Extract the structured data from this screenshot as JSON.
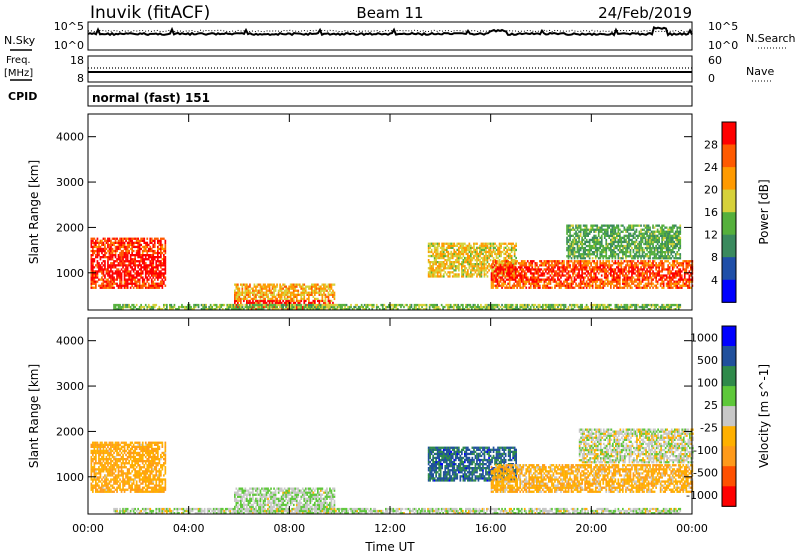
{
  "header": {
    "station": "Inuvik  (fitACF)",
    "beam": "Beam 11",
    "date": "24/Feb/2019"
  },
  "noise_panel": {
    "left_label": "N.Sky",
    "right_label": "N.Search",
    "left_ticks": [
      "10^5",
      "10^0"
    ],
    "right_ticks": [
      "10^5",
      "10^0"
    ]
  },
  "freq_panel": {
    "left_label_line1": "Freq.",
    "left_label_line2": "[MHz]",
    "right_label": "Nave",
    "left_ticks": [
      "18",
      "8"
    ],
    "right_ticks": [
      "60",
      "0"
    ]
  },
  "cpid_panel": {
    "label": "CPID",
    "text": "normal (fast) 151"
  },
  "colors": {
    "power_scale": [
      "#0000ff",
      "#1f4fa8",
      "#3a8a5e",
      "#55b03c",
      "#d6d13a",
      "#ff9a00",
      "#ff5a00",
      "#ff0000"
    ],
    "velocity_scale": [
      "#ff0000",
      "#ff5000",
      "#ff9a1a",
      "#ffb000",
      "#c8c8c8",
      "#5ec83a",
      "#2f8a4a",
      "#20509c",
      "#0000ff"
    ]
  },
  "chart_data": [
    {
      "type": "heatmap",
      "quantity": "power",
      "xlabel": "",
      "ylabel": "Slant Range [km]",
      "colorbar_label": "Power [dB]",
      "colorbar_ticks": [
        "28",
        "24",
        "20",
        "16",
        "12",
        "8",
        "4"
      ],
      "x_ticks": [
        "00:00",
        "04:00",
        "08:00",
        "12:00",
        "16:00",
        "20:00",
        "00:00"
      ],
      "y_ticks": [
        "1000",
        "2000",
        "3000",
        "4000"
      ],
      "xlim_hours": [
        0,
        24
      ],
      "ylim_km": [
        180,
        4500
      ],
      "clim_db": [
        0,
        30
      ],
      "echo_regions": [
        {
          "t0": 0.1,
          "t1": 3.1,
          "r0": 650,
          "r1": 1750,
          "level": 26,
          "core_r0": 850,
          "core_r1": 1400,
          "core_level": 30
        },
        {
          "t0": 5.8,
          "t1": 9.8,
          "r0": 180,
          "r1": 750,
          "level": 20,
          "core_r0": 180,
          "core_r1": 400,
          "core_level": 30
        },
        {
          "t0": 13.5,
          "t1": 17.0,
          "r0": 900,
          "r1": 1650,
          "level": 18
        },
        {
          "t0": 16.0,
          "t1": 24.0,
          "r0": 650,
          "r1": 1250,
          "level": 24,
          "core_r0": 800,
          "core_r1": 1100,
          "core_level": 28
        },
        {
          "t0": 19.0,
          "t1": 23.5,
          "r0": 1300,
          "r1": 2050,
          "level": 12
        },
        {
          "t0": 1.0,
          "t1": 23.5,
          "r0": 180,
          "r1": 300,
          "level": 14
        }
      ]
    },
    {
      "type": "heatmap",
      "quantity": "velocity",
      "xlabel": "Time UT",
      "ylabel": "Slant Range [km]",
      "colorbar_label": "Velocity [m s^-1]",
      "colorbar_ticks": [
        "1000",
        "500",
        "100",
        "25",
        "-25",
        "-100",
        "-500",
        "-1000"
      ],
      "x_ticks": [
        "00:00",
        "04:00",
        "08:00",
        "12:00",
        "16:00",
        "20:00",
        "00:00"
      ],
      "y_ticks": [
        "1000",
        "2000",
        "3000",
        "4000"
      ],
      "xlim_hours": [
        0,
        24
      ],
      "ylim_km": [
        180,
        4500
      ],
      "clim_ms": [
        -1000,
        1000
      ],
      "echo_regions": [
        {
          "t0": 0.1,
          "t1": 3.1,
          "r0": 650,
          "r1": 1750,
          "level": -300
        },
        {
          "t0": 5.8,
          "t1": 9.8,
          "r0": 180,
          "r1": 750,
          "level": 80
        },
        {
          "t0": 13.5,
          "t1": 17.0,
          "r0": 900,
          "r1": 1650,
          "level": 600
        },
        {
          "t0": 16.0,
          "t1": 24.0,
          "r0": 650,
          "r1": 1250,
          "level": -250
        },
        {
          "t0": 19.5,
          "t1": 24.0,
          "r0": 1300,
          "r1": 2050,
          "level": 0
        },
        {
          "t0": 1.0,
          "t1": 23.5,
          "r0": 180,
          "r1": 300,
          "level": 40
        }
      ]
    }
  ]
}
